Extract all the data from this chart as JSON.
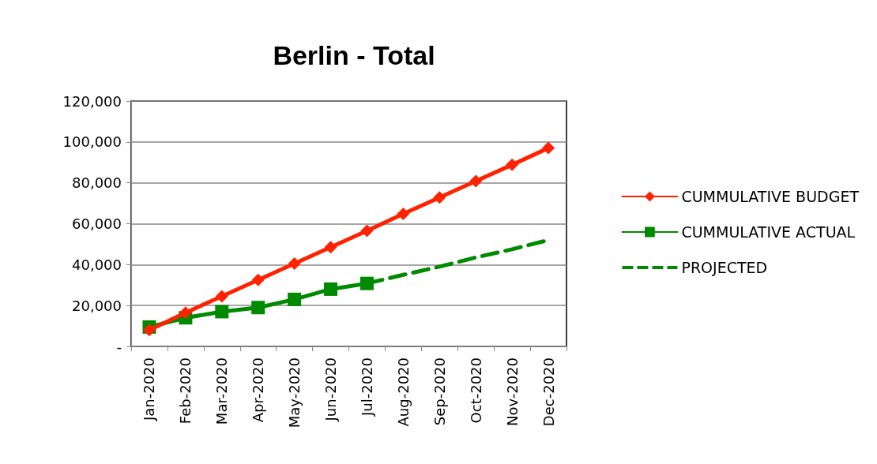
{
  "chart_data": {
    "type": "line",
    "title": "Berlin - Total",
    "categories": [
      "Jan-2020",
      "Feb-2020",
      "Mar-2020",
      "Apr-2020",
      "May-2020",
      "Jun-2020",
      "Jul-2020",
      "Aug-2020",
      "Sep-2020",
      "Oct-2020",
      "Nov-2020",
      "Dec-2020"
    ],
    "series": [
      {
        "name": "CUMMULATIVE BUDGET",
        "color": "#ff2200",
        "marker": "diamond",
        "line_style": "solid",
        "values": [
          8000,
          16500,
          24500,
          32500,
          40500,
          48500,
          56500,
          64800,
          72800,
          80800,
          88800,
          97000
        ]
      },
      {
        "name": "CUMMULATIVE ACTUAL",
        "color": "#008a00",
        "marker": "square",
        "line_style": "solid",
        "values": [
          9500,
          14000,
          17000,
          19000,
          23000,
          28000,
          30800,
          null,
          null,
          null,
          null,
          null
        ]
      },
      {
        "name": "PROJECTED",
        "color": "#008a00",
        "marker": "none",
        "line_style": "dashed",
        "values": [
          null,
          null,
          null,
          null,
          null,
          null,
          30800,
          35000,
          39000,
          43500,
          47500,
          52000
        ]
      }
    ],
    "ylim": [
      0,
      120000
    ],
    "yticks": [
      {
        "value": 0,
        "label": "-"
      },
      {
        "value": 20000,
        "label": "20,000"
      },
      {
        "value": 40000,
        "label": "40,000"
      },
      {
        "value": 60000,
        "label": "60,000"
      },
      {
        "value": 80000,
        "label": "80,000"
      },
      {
        "value": 100000,
        "label": "100,000"
      },
      {
        "value": 120000,
        "label": "120,000"
      }
    ],
    "grid": "y",
    "legend": "right"
  }
}
